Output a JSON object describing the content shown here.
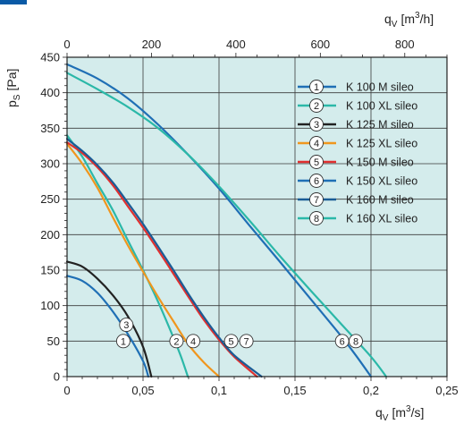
{
  "chart_data": {
    "type": "line",
    "title": "",
    "xlabel": {
      "main": "q",
      "sub": "V",
      "unit": "[m",
      "unit_sup": "3",
      "unit_end": "/s]"
    },
    "x2label": {
      "main": "q",
      "sub": "V",
      "unit": "[m",
      "unit_sup": "3",
      "unit_end": "/h]"
    },
    "ylabel": {
      "main": "p",
      "sub": "S",
      "unit": "[Pa]"
    },
    "xlim": [
      0,
      0.25
    ],
    "x2lim": [
      0,
      900
    ],
    "ylim": [
      0,
      450
    ],
    "x_ticks": [
      0,
      0.05,
      0.1,
      0.15,
      0.2,
      0.25
    ],
    "x_tick_labels": [
      "0",
      "0,05",
      "0,1",
      "0,15",
      "0,2",
      "0,25"
    ],
    "x2_ticks": [
      0,
      200,
      400,
      600,
      800
    ],
    "x2_tick_labels": [
      "0",
      "200",
      "400",
      "600",
      "800"
    ],
    "y_ticks": [
      0,
      50,
      100,
      150,
      200,
      250,
      300,
      350,
      400,
      450
    ],
    "y_tick_labels": [
      "0",
      "50",
      "100",
      "150",
      "200",
      "250",
      "300",
      "350",
      "400",
      "450"
    ],
    "grid": true,
    "legend_position": "top-right",
    "background_color": "#d4ecec",
    "series": [
      {
        "name": "K 100 M sileo",
        "marker": "1",
        "color": "#1f6fb5",
        "label_at": [
          0.037,
          50
        ],
        "points": [
          [
            0,
            142
          ],
          [
            0.01,
            135
          ],
          [
            0.02,
            118
          ],
          [
            0.03,
            92
          ],
          [
            0.04,
            60
          ],
          [
            0.05,
            22
          ],
          [
            0.0535,
            0
          ]
        ]
      },
      {
        "name": "K 100 XL sileo",
        "marker": "2",
        "color": "#2bb8a8",
        "label_at": [
          0.072,
          50
        ],
        "points": [
          [
            0,
            340
          ],
          [
            0.01,
            310
          ],
          [
            0.02,
            272
          ],
          [
            0.03,
            235
          ],
          [
            0.04,
            192
          ],
          [
            0.05,
            150
          ],
          [
            0.06,
            105
          ],
          [
            0.07,
            55
          ],
          [
            0.075,
            28
          ],
          [
            0.0795,
            0
          ]
        ]
      },
      {
        "name": "K 125 M sileo",
        "marker": "3",
        "color": "#222222",
        "label_at": [
          0.039,
          73
        ],
        "points": [
          [
            0,
            162
          ],
          [
            0.01,
            155
          ],
          [
            0.02,
            138
          ],
          [
            0.03,
            115
          ],
          [
            0.04,
            85
          ],
          [
            0.05,
            42
          ],
          [
            0.0555,
            0
          ]
        ]
      },
      {
        "name": "K 125 XL sileo",
        "marker": "4",
        "color": "#f0961e",
        "label_at": [
          0.083,
          50
        ],
        "points": [
          [
            0,
            328
          ],
          [
            0.01,
            300
          ],
          [
            0.02,
            266
          ],
          [
            0.03,
            225
          ],
          [
            0.04,
            185
          ],
          [
            0.05,
            148
          ],
          [
            0.06,
            112
          ],
          [
            0.07,
            78
          ],
          [
            0.08,
            45
          ],
          [
            0.09,
            20
          ],
          [
            0.1,
            0
          ]
        ]
      },
      {
        "name": "K 150 M sileo",
        "marker": "5",
        "color": "#e02f2f",
        "label_at": [
          0.108,
          50
        ],
        "points": [
          [
            0,
            330
          ],
          [
            0.01,
            315
          ],
          [
            0.02,
            295
          ],
          [
            0.03,
            270
          ],
          [
            0.04,
            240
          ],
          [
            0.05,
            210
          ],
          [
            0.06,
            178
          ],
          [
            0.07,
            145
          ],
          [
            0.08,
            112
          ],
          [
            0.09,
            80
          ],
          [
            0.1,
            52
          ],
          [
            0.11,
            28
          ],
          [
            0.125,
            0
          ]
        ]
      },
      {
        "name": "K 150 XL sileo",
        "marker": "6",
        "color": "#1f6fb5",
        "label_at": [
          0.181,
          50
        ],
        "points": [
          [
            0,
            440
          ],
          [
            0.02,
            420
          ],
          [
            0.04,
            392
          ],
          [
            0.06,
            355
          ],
          [
            0.08,
            312
          ],
          [
            0.1,
            265
          ],
          [
            0.12,
            213
          ],
          [
            0.14,
            162
          ],
          [
            0.16,
            110
          ],
          [
            0.18,
            58
          ],
          [
            0.19,
            30
          ],
          [
            0.2,
            0
          ]
        ]
      },
      {
        "name": "K 160 M sileo",
        "marker": "7",
        "color": "#1a5c96",
        "label_at": [
          0.118,
          50
        ],
        "points": [
          [
            0,
            335
          ],
          [
            0.01,
            318
          ],
          [
            0.02,
            298
          ],
          [
            0.03,
            274
          ],
          [
            0.04,
            245
          ],
          [
            0.05,
            215
          ],
          [
            0.06,
            183
          ],
          [
            0.07,
            150
          ],
          [
            0.08,
            116
          ],
          [
            0.09,
            84
          ],
          [
            0.1,
            55
          ],
          [
            0.11,
            30
          ],
          [
            0.128,
            0
          ]
        ]
      },
      {
        "name": "K 160 XL sileo",
        "marker": "8",
        "color": "#2bb8a8",
        "label_at": [
          0.19,
          50
        ],
        "points": [
          [
            0,
            428
          ],
          [
            0.02,
            405
          ],
          [
            0.04,
            380
          ],
          [
            0.06,
            350
          ],
          [
            0.08,
            312
          ],
          [
            0.1,
            268
          ],
          [
            0.12,
            220
          ],
          [
            0.14,
            170
          ],
          [
            0.16,
            122
          ],
          [
            0.18,
            75
          ],
          [
            0.2,
            28
          ],
          [
            0.21,
            0
          ]
        ]
      }
    ]
  }
}
